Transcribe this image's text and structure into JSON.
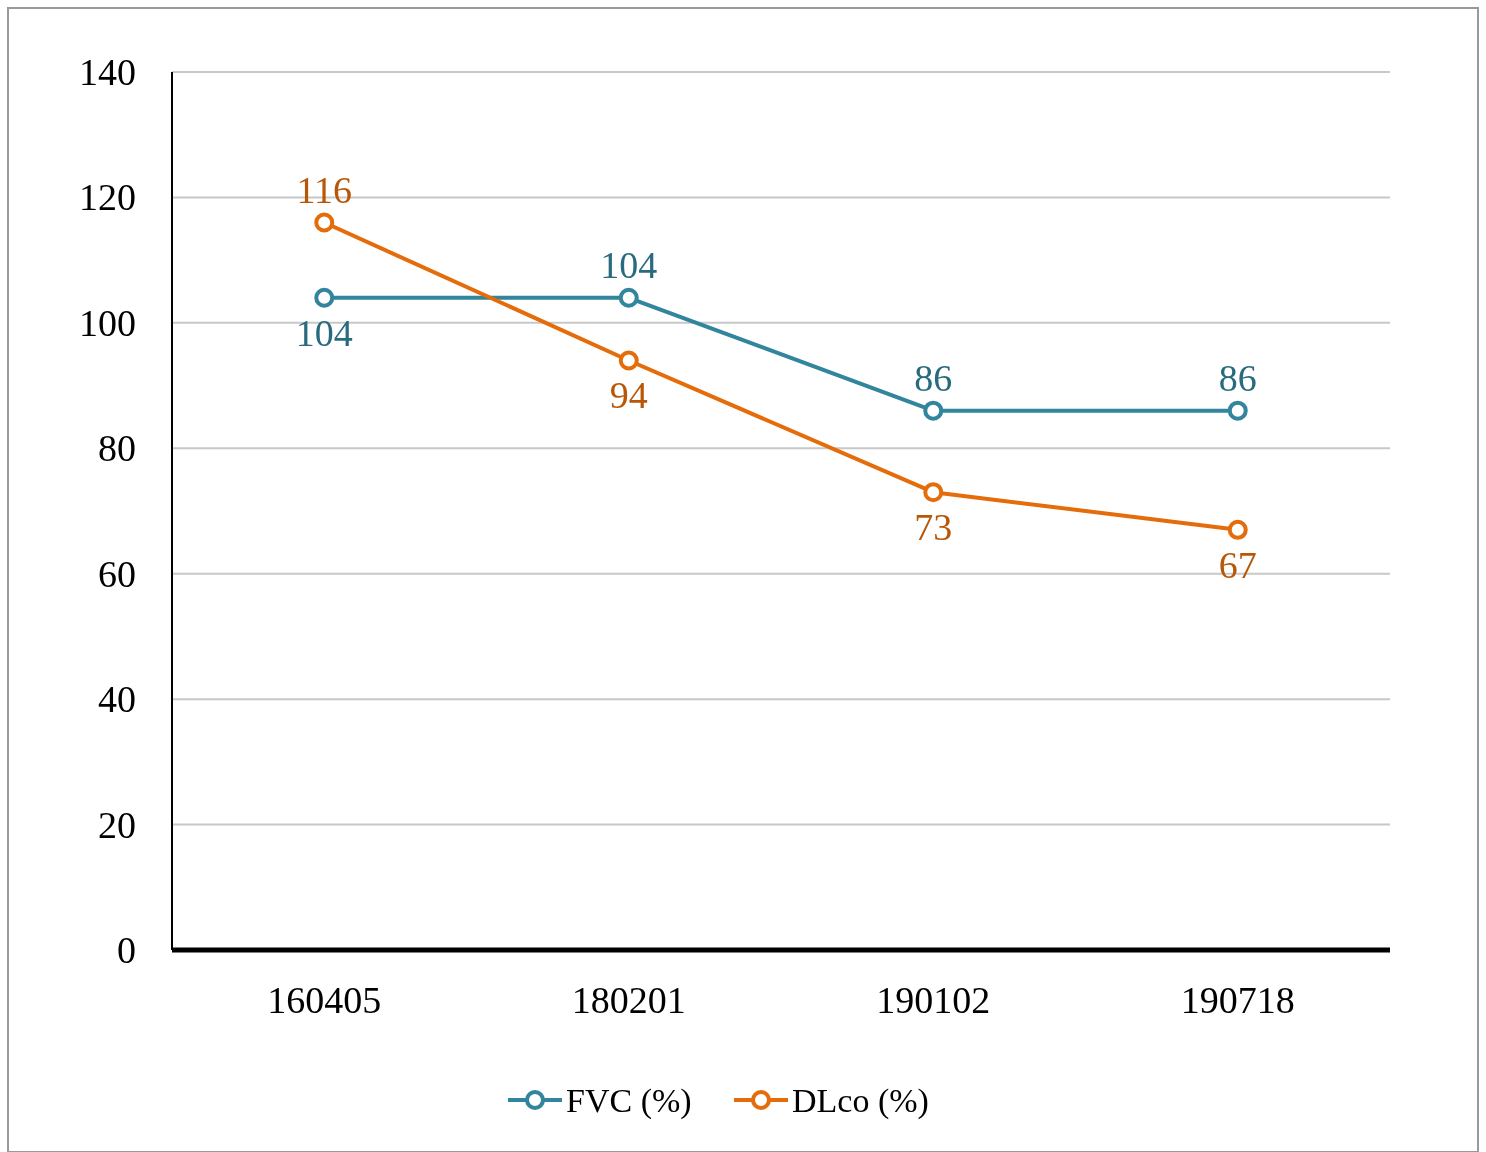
{
  "chart_data": {
    "type": "line",
    "categories": [
      "160405",
      "180201",
      "190102",
      "190718"
    ],
    "series": [
      {
        "name": "FVC (%)",
        "color": "#31859c",
        "values": [
          104,
          104,
          86,
          86
        ]
      },
      {
        "name": "DLco (%)",
        "color": "#e46c0a",
        "values": [
          116,
          94,
          73,
          67
        ]
      }
    ],
    "ylim": [
      0,
      140
    ],
    "yticks": [
      0,
      20,
      40,
      60,
      80,
      100,
      120,
      140
    ],
    "grid": "y",
    "legend": "bottom",
    "marker": "circle",
    "line_style": "solid",
    "data_labels": true
  }
}
